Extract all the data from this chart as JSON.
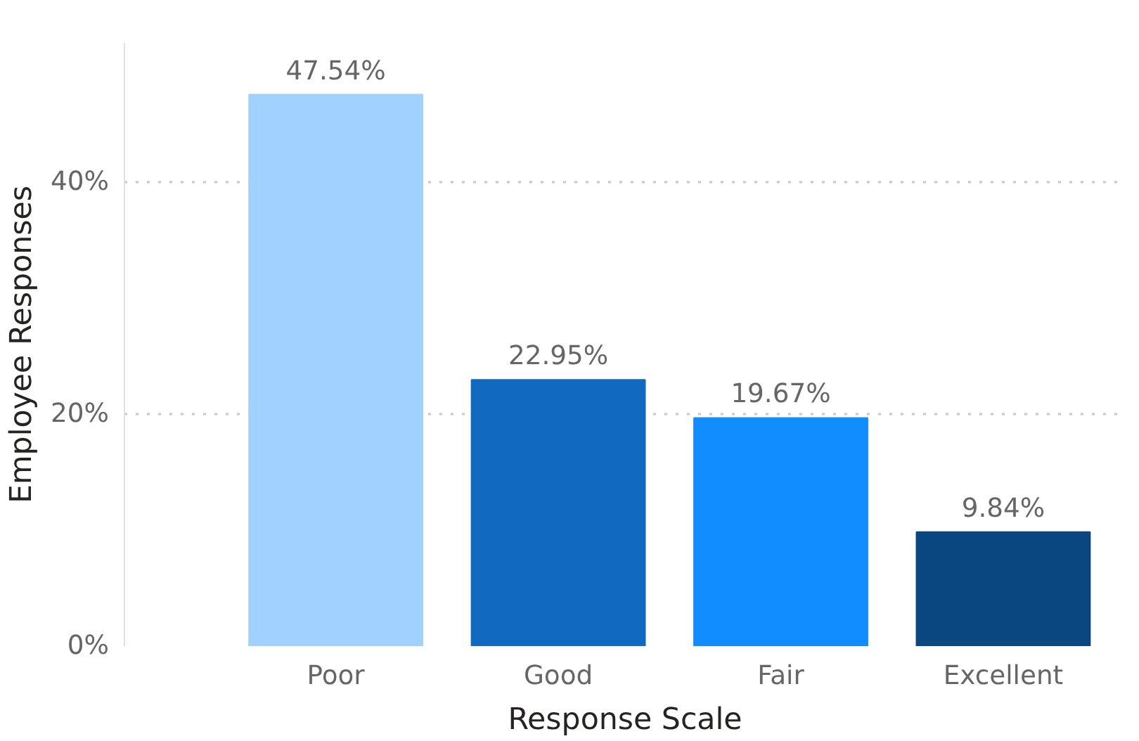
{
  "chart_data": {
    "type": "bar",
    "xlabel": "Response Scale",
    "ylabel": "Employee Responses",
    "categories": [
      "Poor",
      "Good",
      "Fair",
      "Excellent"
    ],
    "values": [
      47.54,
      22.95,
      19.67,
      9.84
    ],
    "colors": [
      "#a0d1ff",
      "#1269c0",
      "#128dff",
      "#0a4680"
    ],
    "value_labels": [
      "47.54%",
      "22.95%",
      "19.67%",
      "9.84%"
    ],
    "ylim": [
      0,
      52
    ],
    "yticks": [
      {
        "value": 0,
        "label": "0%"
      },
      {
        "value": 20,
        "label": "20%"
      },
      {
        "value": 40,
        "label": "40%"
      }
    ],
    "grid": "y"
  }
}
